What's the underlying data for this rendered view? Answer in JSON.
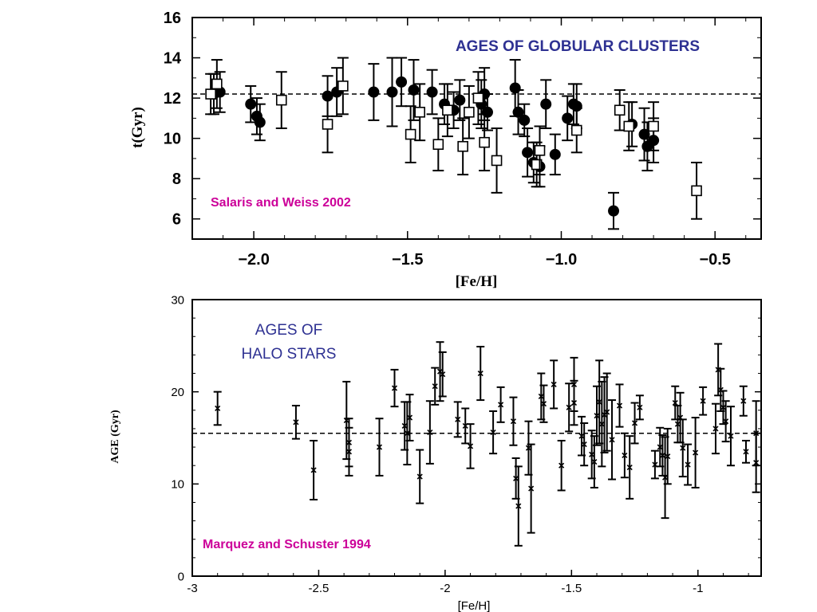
{
  "colors": {
    "title": "#2e3192",
    "citation": "#cc0099",
    "ink": "#000000"
  },
  "chart_data": [
    {
      "type": "scatter",
      "title": "AGES OF GLOBULAR CLUSTERS",
      "annotation": "Salaris and Weiss 2002",
      "xlabel": "[Fe/H]",
      "ylabel": "t(Gyr)",
      "xlim": [
        -2.2,
        -0.35
      ],
      "ylim": [
        5,
        16
      ],
      "xticks": [
        -2.0,
        -1.5,
        -1.0,
        -0.5
      ],
      "xtick_labels": [
        "−2.0",
        "−1.5",
        "−1.0",
        "−0.5"
      ],
      "yticks": [
        6,
        8,
        10,
        12,
        14,
        16
      ],
      "ytick_labels": [
        "6",
        "8",
        "10",
        "12",
        "14",
        "16"
      ],
      "reference_line": 12.2,
      "series": [
        {
          "marker": "filled-circle",
          "points": [
            {
              "x": -2.13,
              "y": 12.2,
              "err": 1.0
            },
            {
              "x": -2.11,
              "y": 12.3,
              "err": 1.0
            },
            {
              "x": -2.01,
              "y": 11.7,
              "err": 0.9
            },
            {
              "x": -1.99,
              "y": 11.1,
              "err": 0.9
            },
            {
              "x": -1.98,
              "y": 10.8,
              "err": 0.9
            },
            {
              "x": -1.76,
              "y": 12.1,
              "err": 1.0
            },
            {
              "x": -1.73,
              "y": 12.3,
              "err": 1.2
            },
            {
              "x": -1.61,
              "y": 12.3,
              "err": 1.4
            },
            {
              "x": -1.55,
              "y": 12.3,
              "err": 1.7
            },
            {
              "x": -1.52,
              "y": 12.8,
              "err": 1.2
            },
            {
              "x": -1.48,
              "y": 12.4,
              "err": 1.5
            },
            {
              "x": -1.42,
              "y": 12.3,
              "err": 1.1
            },
            {
              "x": -1.38,
              "y": 11.7,
              "err": 1.0
            },
            {
              "x": -1.35,
              "y": 11.4,
              "err": 0.9
            },
            {
              "x": -1.33,
              "y": 11.9,
              "err": 1.0
            },
            {
              "x": -1.26,
              "y": 11.7,
              "err": 1.2
            },
            {
              "x": -1.25,
              "y": 12.2,
              "err": 1.3
            },
            {
              "x": -1.24,
              "y": 11.3,
              "err": 0.9
            },
            {
              "x": -1.15,
              "y": 12.5,
              "err": 1.4
            },
            {
              "x": -1.14,
              "y": 11.3,
              "err": 1.1
            },
            {
              "x": -1.12,
              "y": 10.9,
              "err": 0.8
            },
            {
              "x": -1.11,
              "y": 9.3,
              "err": 1.2
            },
            {
              "x": -1.09,
              "y": 8.8,
              "err": 1.0
            },
            {
              "x": -1.07,
              "y": 8.6,
              "err": 1.0
            },
            {
              "x": -1.05,
              "y": 11.7,
              "err": 1.2
            },
            {
              "x": -1.02,
              "y": 9.2,
              "err": 1.0
            },
            {
              "x": -0.98,
              "y": 11.0,
              "err": 1.1
            },
            {
              "x": -0.96,
              "y": 11.7,
              "err": 1.0
            },
            {
              "x": -0.95,
              "y": 11.6,
              "err": 1.1
            },
            {
              "x": -0.83,
              "y": 6.4,
              "err": 0.9
            },
            {
              "x": -0.77,
              "y": 10.7,
              "err": 1.1
            },
            {
              "x": -0.73,
              "y": 10.2,
              "err": 1.3
            },
            {
              "x": -0.72,
              "y": 9.6,
              "err": 1.2
            },
            {
              "x": -0.7,
              "y": 9.9,
              "err": 1.1
            }
          ]
        },
        {
          "marker": "open-square",
          "points": [
            {
              "x": -2.14,
              "y": 12.2,
              "err": 1.0
            },
            {
              "x": -2.12,
              "y": 12.7,
              "err": 1.2
            },
            {
              "x": -1.91,
              "y": 11.9,
              "err": 1.4
            },
            {
              "x": -1.76,
              "y": 10.7,
              "err": 1.4
            },
            {
              "x": -1.71,
              "y": 12.6,
              "err": 1.4
            },
            {
              "x": -1.49,
              "y": 10.2,
              "err": 1.4
            },
            {
              "x": -1.46,
              "y": 11.3,
              "err": 1.4
            },
            {
              "x": -1.4,
              "y": 9.7,
              "err": 1.3
            },
            {
              "x": -1.37,
              "y": 11.4,
              "err": 1.3
            },
            {
              "x": -1.32,
              "y": 9.6,
              "err": 1.4
            },
            {
              "x": -1.3,
              "y": 11.3,
              "err": 1.3
            },
            {
              "x": -1.27,
              "y": 12.0,
              "err": 1.3
            },
            {
              "x": -1.25,
              "y": 9.8,
              "err": 1.4
            },
            {
              "x": -1.21,
              "y": 8.9,
              "err": 1.6
            },
            {
              "x": -1.08,
              "y": 8.7,
              "err": 1.1
            },
            {
              "x": -1.07,
              "y": 9.4,
              "err": 1.2
            },
            {
              "x": -0.95,
              "y": 10.4,
              "err": 1.1
            },
            {
              "x": -0.81,
              "y": 11.4,
              "err": 1.0
            },
            {
              "x": -0.78,
              "y": 10.6,
              "err": 1.2
            },
            {
              "x": -0.7,
              "y": 10.6,
              "err": 1.2
            },
            {
              "x": -0.56,
              "y": 7.4,
              "err": 1.4
            }
          ]
        }
      ]
    },
    {
      "type": "scatter",
      "title": "AGES OF\nHALO STARS",
      "annotation": "Marquez and Schuster 1994",
      "xlabel": "[Fe/H]",
      "ylabel": "AGE (Gyr)",
      "xlim": [
        -3.0,
        -0.75
      ],
      "ylim": [
        0,
        30
      ],
      "xticks": [
        -3,
        -2.5,
        -2,
        -1.5,
        -1
      ],
      "xtick_labels": [
        "-3",
        "-2.5",
        "-2",
        "-1.5",
        "-1"
      ],
      "yticks": [
        0,
        10,
        20,
        30
      ],
      "ytick_labels": [
        "0",
        "10",
        "20",
        "30"
      ],
      "reference_line": 15.5,
      "series": [
        {
          "marker": "cross",
          "points": [
            {
              "x": -2.9,
              "y": 18.2,
              "err": 1.8
            },
            {
              "x": -2.59,
              "y": 16.7,
              "err": 1.8
            },
            {
              "x": -2.52,
              "y": 11.5,
              "err": 3.2
            },
            {
              "x": -2.39,
              "y": 16.9,
              "err": 4.2
            },
            {
              "x": -2.38,
              "y": 13.5,
              "err": 2.6
            },
            {
              "x": -2.38,
              "y": 14.5,
              "err": 2.6
            },
            {
              "x": -2.26,
              "y": 14.0,
              "err": 3.1
            },
            {
              "x": -2.2,
              "y": 20.4,
              "err": 2.0
            },
            {
              "x": -2.16,
              "y": 16.3,
              "err": 2.6
            },
            {
              "x": -2.15,
              "y": 15.5,
              "err": 3.4
            },
            {
              "x": -2.14,
              "y": 17.2,
              "err": 2.5
            },
            {
              "x": -2.1,
              "y": 10.8,
              "err": 2.9
            },
            {
              "x": -2.06,
              "y": 15.6,
              "err": 3.4
            },
            {
              "x": -2.04,
              "y": 20.6,
              "err": 2.0
            },
            {
              "x": -2.02,
              "y": 22.2,
              "err": 3.2
            },
            {
              "x": -2.01,
              "y": 21.9,
              "err": 2.4
            },
            {
              "x": -1.95,
              "y": 17.0,
              "err": 1.9
            },
            {
              "x": -1.92,
              "y": 16.3,
              "err": 1.9
            },
            {
              "x": -1.9,
              "y": 14.1,
              "err": 2.4
            },
            {
              "x": -1.86,
              "y": 22.0,
              "err": 2.9
            },
            {
              "x": -1.81,
              "y": 15.6,
              "err": 2.3
            },
            {
              "x": -1.78,
              "y": 18.6,
              "err": 1.9
            },
            {
              "x": -1.73,
              "y": 16.8,
              "err": 2.6
            },
            {
              "x": -1.72,
              "y": 10.6,
              "err": 2.2
            },
            {
              "x": -1.71,
              "y": 7.6,
              "err": 4.3
            },
            {
              "x": -1.67,
              "y": 13.9,
              "err": 2.9
            },
            {
              "x": -1.66,
              "y": 9.5,
              "err": 4.8
            },
            {
              "x": -1.62,
              "y": 19.5,
              "err": 2.5
            },
            {
              "x": -1.61,
              "y": 18.7,
              "err": 2.0
            },
            {
              "x": -1.57,
              "y": 20.8,
              "err": 2.6
            },
            {
              "x": -1.54,
              "y": 12.0,
              "err": 2.7
            },
            {
              "x": -1.51,
              "y": 18.3,
              "err": 2.6
            },
            {
              "x": -1.49,
              "y": 20.8,
              "err": 2.9
            },
            {
              "x": -1.49,
              "y": 18.8,
              "err": 2.4
            },
            {
              "x": -1.46,
              "y": 15.2,
              "err": 2.1
            },
            {
              "x": -1.45,
              "y": 14.3,
              "err": 2.3
            },
            {
              "x": -1.42,
              "y": 13.2,
              "err": 2.6
            },
            {
              "x": -1.41,
              "y": 12.4,
              "err": 2.8
            },
            {
              "x": -1.4,
              "y": 17.4,
              "err": 3.2
            },
            {
              "x": -1.39,
              "y": 18.9,
              "err": 4.5
            },
            {
              "x": -1.38,
              "y": 16.5,
              "err": 4.6
            },
            {
              "x": -1.37,
              "y": 17.5,
              "err": 4.1
            },
            {
              "x": -1.36,
              "y": 17.8,
              "err": 4.2
            },
            {
              "x": -1.34,
              "y": 14.8,
              "err": 4.3
            },
            {
              "x": -1.31,
              "y": 18.5,
              "err": 2.3
            },
            {
              "x": -1.29,
              "y": 13.1,
              "err": 2.4
            },
            {
              "x": -1.27,
              "y": 11.8,
              "err": 3.4
            },
            {
              "x": -1.25,
              "y": 16.6,
              "err": 2.2
            },
            {
              "x": -1.23,
              "y": 18.3,
              "err": 1.3
            },
            {
              "x": -1.17,
              "y": 12.1,
              "err": 1.5
            },
            {
              "x": -1.15,
              "y": 14.0,
              "err": 2.1
            },
            {
              "x": -1.14,
              "y": 13.1,
              "err": 2.2
            },
            {
              "x": -1.13,
              "y": 10.7,
              "err": 4.4
            },
            {
              "x": -1.12,
              "y": 13.0,
              "err": 3.0
            },
            {
              "x": -1.09,
              "y": 18.8,
              "err": 1.8
            },
            {
              "x": -1.08,
              "y": 16.5,
              "err": 2.0
            },
            {
              "x": -1.07,
              "y": 17.2,
              "err": 2.7
            },
            {
              "x": -1.06,
              "y": 13.9,
              "err": 3.1
            },
            {
              "x": -1.04,
              "y": 12.1,
              "err": 2.2
            },
            {
              "x": -1.01,
              "y": 13.4,
              "err": 3.8
            },
            {
              "x": -0.98,
              "y": 19.0,
              "err": 1.5
            },
            {
              "x": -0.93,
              "y": 16.0,
              "err": 2.7
            },
            {
              "x": -0.92,
              "y": 22.4,
              "err": 2.8
            },
            {
              "x": -0.91,
              "y": 20.2,
              "err": 2.3
            },
            {
              "x": -0.9,
              "y": 18.3,
              "err": 1.8
            },
            {
              "x": -0.89,
              "y": 16.8,
              "err": 2.2
            },
            {
              "x": -0.87,
              "y": 15.2,
              "err": 3.2
            },
            {
              "x": -0.82,
              "y": 19.0,
              "err": 1.6
            },
            {
              "x": -0.81,
              "y": 13.5,
              "err": 1.2
            },
            {
              "x": -0.77,
              "y": 15.5,
              "err": 3.5
            },
            {
              "x": -0.77,
              "y": 12.3,
              "err": 3.2
            }
          ]
        }
      ]
    }
  ]
}
